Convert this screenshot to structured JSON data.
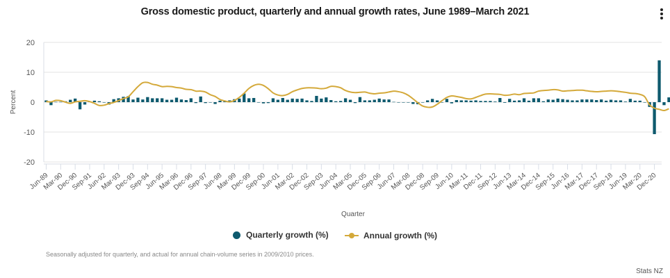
{
  "menu_icon": "more-vertical-icon",
  "legend": [
    {
      "label": "Quarterly growth (%)",
      "icon": "circle",
      "color": "#0e5a6e"
    },
    {
      "label": "Annual growth (%)",
      "icon": "line-with-marker",
      "color": "#d4a93a"
    }
  ],
  "caption": "Seasonally adjusted for quarterly, and actual for annual chain-volume series in 2009/2010 prices.",
  "credit": "Stats NZ",
  "chart_data": {
    "type": "bar+line",
    "title": "Gross domestic product, quarterly and annual growth rates, June 1989–March 2021",
    "xlabel": "Quarter",
    "ylabel": "Percent",
    "ylim": [
      -20,
      20
    ],
    "yticks": [
      20,
      10,
      0,
      -10,
      -20
    ],
    "grid": true,
    "legend_position": "bottom",
    "tick_every": 3,
    "categories": [
      "Jun-89",
      "Sep-89",
      "Dec-89",
      "Mar-90",
      "Jun-90",
      "Sep-90",
      "Dec-90",
      "Mar-91",
      "Jun-91",
      "Sep-91",
      "Dec-91",
      "Mar-92",
      "Jun-92",
      "Sep-92",
      "Dec-92",
      "Mar-93",
      "Jun-93",
      "Sep-93",
      "Dec-93",
      "Mar-94",
      "Jun-94",
      "Sep-94",
      "Dec-94",
      "Mar-95",
      "Jun-95",
      "Sep-95",
      "Dec-95",
      "Mar-96",
      "Jun-96",
      "Sep-96",
      "Dec-96",
      "Mar-97",
      "Jun-97",
      "Sep-97",
      "Dec-97",
      "Mar-98",
      "Jun-98",
      "Sep-98",
      "Dec-98",
      "Mar-99",
      "Jun-99",
      "Sep-99",
      "Dec-99",
      "Mar-00",
      "Jun-00",
      "Sep-00",
      "Dec-00",
      "Mar-01",
      "Jun-01",
      "Sep-01",
      "Dec-01",
      "Mar-02",
      "Jun-02",
      "Sep-02",
      "Dec-02",
      "Mar-03",
      "Jun-03",
      "Sep-03",
      "Dec-03",
      "Mar-04",
      "Jun-04",
      "Sep-04",
      "Dec-04",
      "Mar-05",
      "Jun-05",
      "Sep-05",
      "Dec-05",
      "Mar-06",
      "Jun-06",
      "Sep-06",
      "Dec-06",
      "Mar-07",
      "Jun-07",
      "Sep-07",
      "Dec-07",
      "Mar-08",
      "Jun-08",
      "Sep-08",
      "Dec-08",
      "Mar-09",
      "Jun-09",
      "Sep-09",
      "Dec-09",
      "Mar-10",
      "Jun-10",
      "Sep-10",
      "Dec-10",
      "Mar-11",
      "Jun-11",
      "Sep-11",
      "Dec-11",
      "Mar-12",
      "Jun-12",
      "Sep-12",
      "Dec-12",
      "Mar-13",
      "Jun-13",
      "Sep-13",
      "Dec-13",
      "Mar-14",
      "Jun-14",
      "Sep-14",
      "Dec-14",
      "Mar-15",
      "Jun-15",
      "Sep-15",
      "Dec-15",
      "Mar-16",
      "Jun-16",
      "Sep-16",
      "Dec-16",
      "Mar-17",
      "Jun-17",
      "Sep-17",
      "Dec-17",
      "Mar-18",
      "Jun-18",
      "Sep-18",
      "Dec-18",
      "Mar-19",
      "Jun-19",
      "Sep-19",
      "Dec-19",
      "Mar-20",
      "Jun-20",
      "Sep-20",
      "Dec-20",
      "Mar-21"
    ],
    "series": [
      {
        "name": "Quarterly growth (%)",
        "type": "bar",
        "color": "#0e5a6e",
        "values": [
          0.6,
          -1.0,
          0.1,
          0.1,
          0.3,
          0.8,
          1.2,
          -2.4,
          -0.8,
          0.2,
          0.5,
          0.3,
          0.0,
          -0.8,
          1.0,
          1.3,
          1.8,
          2.0,
          0.9,
          1.5,
          0.9,
          1.7,
          1.3,
          1.3,
          1.3,
          0.8,
          0.8,
          1.5,
          0.9,
          0.7,
          1.3,
          -0.3,
          1.9,
          -0.3,
          0.0,
          -0.6,
          0.5,
          0.3,
          0.6,
          1.0,
          1.2,
          2.9,
          1.3,
          1.4,
          0.0,
          -0.4,
          -0.3,
          1.3,
          0.8,
          1.4,
          0.8,
          1.2,
          1.1,
          1.2,
          0.6,
          0.4,
          2.1,
          1.2,
          1.6,
          0.7,
          0.3,
          0.4,
          1.3,
          0.8,
          -0.3,
          1.7,
          0.6,
          0.6,
          0.8,
          1.2,
          0.9,
          0.9,
          0.1,
          0.0,
          0.0,
          -0.1,
          -0.6,
          -0.7,
          0.0,
          0.6,
          1.1,
          0.6,
          0.0,
          1.1,
          -0.4,
          0.7,
          0.6,
          0.6,
          0.5,
          0.6,
          0.4,
          0.4,
          0.4,
          0.2,
          1.4,
          -0.2,
          1.1,
          0.5,
          0.6,
          1.3,
          0.5,
          1.3,
          1.3,
          0.3,
          0.9,
          0.8,
          1.2,
          1.0,
          0.8,
          0.6,
          0.6,
          0.9,
          0.9,
          0.9,
          0.7,
          0.9,
          0.5,
          0.8,
          0.6,
          0.6,
          0.2,
          1.1,
          0.5,
          0.5,
          0.0,
          -1.6,
          -10.7,
          14.0,
          -1.0,
          1.6
        ]
      },
      {
        "name": "Annual growth (%)",
        "type": "line",
        "color": "#d4a93a",
        "values": [
          0.2,
          0.1,
          0.6,
          0.5,
          0.0,
          -0.4,
          0.1,
          0.3,
          0.5,
          0.2,
          -0.4,
          -1.1,
          -1.0,
          -0.5,
          -0.1,
          0.5,
          1.2,
          1.8,
          3.5,
          5.2,
          6.5,
          6.6,
          6.0,
          5.7,
          5.2,
          5.3,
          5.2,
          4.9,
          4.7,
          4.3,
          4.2,
          3.7,
          3.7,
          3.4,
          2.5,
          1.9,
          0.9,
          0.4,
          0.1,
          0.6,
          1.6,
          3.0,
          4.6,
          5.6,
          6.0,
          5.6,
          4.5,
          3.1,
          2.4,
          2.2,
          2.6,
          3.5,
          4.1,
          4.6,
          4.8,
          4.8,
          4.7,
          4.5,
          4.7,
          5.3,
          5.2,
          4.8,
          3.9,
          3.4,
          3.2,
          3.3,
          3.4,
          3.0,
          2.8,
          3.0,
          3.1,
          3.4,
          3.7,
          3.5,
          3.1,
          2.3,
          1.1,
          -0.2,
          -1.3,
          -1.7,
          -1.6,
          -0.7,
          0.5,
          1.6,
          2.1,
          1.9,
          1.6,
          1.2,
          1.1,
          1.6,
          2.2,
          2.7,
          2.8,
          2.7,
          2.6,
          2.3,
          2.4,
          2.7,
          2.5,
          2.9,
          3.0,
          3.1,
          3.7,
          3.9,
          4.0,
          4.2,
          4.1,
          3.7,
          3.8,
          3.9,
          4.0,
          4.0,
          3.8,
          3.6,
          3.5,
          3.6,
          3.7,
          3.8,
          3.7,
          3.5,
          3.3,
          3.0,
          2.9,
          2.6,
          1.8,
          -0.9,
          -2.0,
          -2.4,
          -2.8,
          -2.2
        ]
      }
    ]
  }
}
